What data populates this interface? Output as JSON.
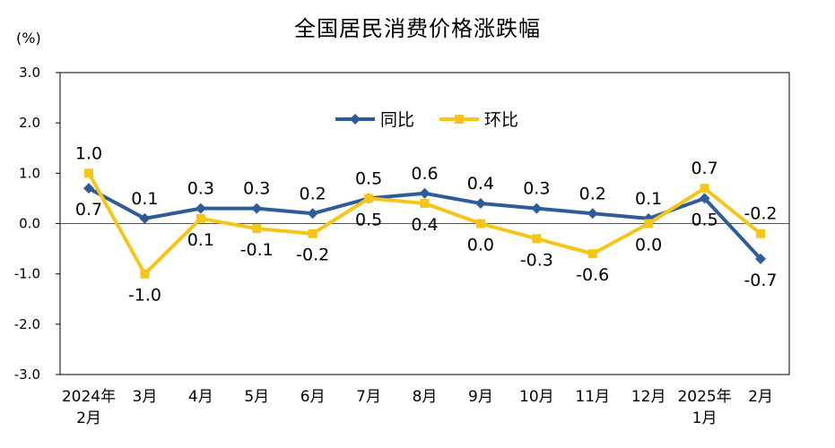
{
  "chart_data": {
    "type": "line",
    "title": "全国居民消费价格涨跌幅",
    "unit": "(%)",
    "ylim": [
      -3.0,
      3.0
    ],
    "yticks": [
      "3.0",
      "2.0",
      "1.0",
      "0.0",
      "-1.0",
      "-2.0",
      "-3.0"
    ],
    "categories": [
      [
        "2024年",
        "2月"
      ],
      [
        "3月"
      ],
      [
        "4月"
      ],
      [
        "5月"
      ],
      [
        "6月"
      ],
      [
        "7月"
      ],
      [
        "8月"
      ],
      [
        "9月"
      ],
      [
        "10月"
      ],
      [
        "11月"
      ],
      [
        "12月"
      ],
      [
        "2025年",
        "1月"
      ],
      [
        "2月"
      ]
    ],
    "series": [
      {
        "name": "同比",
        "color": "#2e5c99",
        "values": [
          0.7,
          0.1,
          0.3,
          0.3,
          0.2,
          0.5,
          0.6,
          0.4,
          0.3,
          0.2,
          0.1,
          0.5,
          -0.7
        ],
        "labels": [
          "0.7",
          "0.1",
          "0.3",
          "0.3",
          "0.2",
          "0.5",
          "0.6",
          "0.4",
          "0.3",
          "0.2",
          "0.1",
          "0.5",
          "-0.7"
        ],
        "label_pos": [
          "below",
          "above",
          "above",
          "above",
          "above",
          "above",
          "above",
          "above",
          "above",
          "above",
          "above",
          "below",
          "below"
        ]
      },
      {
        "name": "环比",
        "color": "#f5c518",
        "values": [
          1.0,
          -1.0,
          0.1,
          -0.1,
          -0.2,
          0.5,
          0.4,
          0.0,
          -0.3,
          -0.6,
          0.0,
          0.7,
          -0.2
        ],
        "labels": [
          "1.0",
          "-1.0",
          "0.1",
          "-0.1",
          "-0.2",
          "0.5",
          "0.4",
          "0.0",
          "-0.3",
          "-0.6",
          "0.0",
          "0.7",
          "-0.2"
        ],
        "label_pos": [
          "above",
          "below",
          "below",
          "below",
          "below",
          "below",
          "below",
          "below",
          "below",
          "below",
          "below",
          "above",
          "above"
        ]
      }
    ],
    "legend": "top-center",
    "grid": false
  }
}
